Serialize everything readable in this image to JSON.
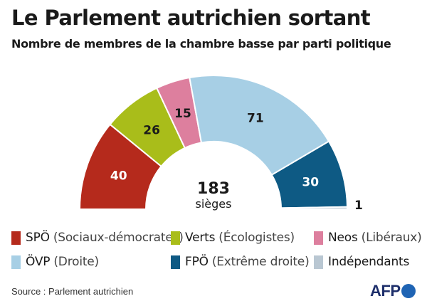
{
  "header": {
    "title": "Le Parlement autrichien sortant",
    "subtitle": "Nombre de membres de la chambre basse par parti politique"
  },
  "chart_data": {
    "type": "pie",
    "variant": "semicircle-donut",
    "title": "Le Parlement autrichien sortant",
    "subtitle": "Nombre de membres de la chambre basse par parti politique",
    "total": 183,
    "total_value_label": "183",
    "total_label": "sièges",
    "series": [
      {
        "key": "spo",
        "name": "SPÖ",
        "desc": "(Sociaux-démocrates)",
        "value": 40,
        "color": "#b52a1c"
      },
      {
        "key": "verts",
        "name": "Verts",
        "desc": "(Écologistes)",
        "value": 26,
        "color": "#a9bd1a"
      },
      {
        "key": "neos",
        "name": "Neos",
        "desc": "(Libéraux)",
        "value": 15,
        "color": "#dd7f9e"
      },
      {
        "key": "ovp",
        "name": "ÖVP",
        "desc": "(Droite)",
        "value": 71,
        "color": "#a7cfe5"
      },
      {
        "key": "fpo",
        "name": "FPÖ",
        "desc": "(Extrême droite)",
        "value": 30,
        "color": "#0e5a84"
      },
      {
        "key": "indep",
        "name": "Indépendants",
        "desc": "",
        "value": 1,
        "color": "#b9c7d2"
      }
    ]
  },
  "footer": {
    "source": "Source : Parlement autrichien",
    "logo_text": "AFP"
  }
}
